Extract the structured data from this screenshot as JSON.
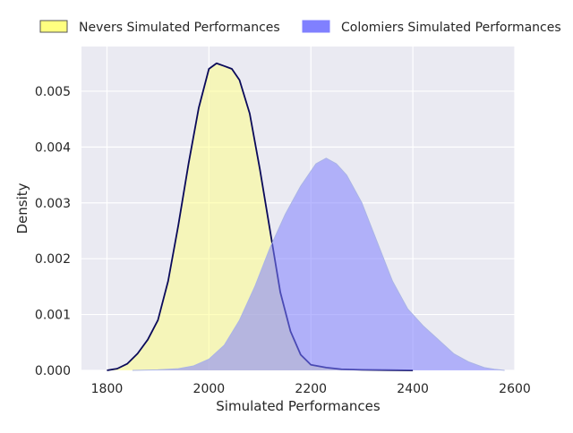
{
  "chart_data": {
    "type": "area",
    "xlabel": "Simulated Performances",
    "ylabel": "Density",
    "xlim": [
      1750,
      2600
    ],
    "ylim": [
      0,
      0.0058
    ],
    "xticks": [
      1800,
      2000,
      2200,
      2400,
      2600
    ],
    "xtick_labels": [
      "1800",
      "2000",
      "2200",
      "2400",
      "2600"
    ],
    "yticks": [
      0,
      0.001,
      0.002,
      0.003,
      0.004,
      0.005
    ],
    "ytick_labels": [
      "0.000",
      "0.001",
      "0.002",
      "0.003",
      "0.004",
      "0.005"
    ],
    "grid": true,
    "legend_position": "top",
    "colors": {
      "background": "#eaeaf2",
      "grid": "#ffffff",
      "nevers_fill": "#ffff80",
      "nevers_line": "#0a0a5a",
      "colomiers_fill": "#8080ff",
      "colomiers_line": "#aab4e6",
      "legend_border": "#555555"
    },
    "series": [
      {
        "name": "Nevers Simulated Performances",
        "x": [
          1800,
          1820,
          1840,
          1860,
          1880,
          1900,
          1920,
          1940,
          1960,
          1980,
          2000,
          2015,
          2030,
          2045,
          2060,
          2080,
          2100,
          2120,
          2140,
          2160,
          2180,
          2200,
          2230,
          2260,
          2300,
          2350,
          2400
        ],
        "y": [
          0.0,
          3e-05,
          0.00012,
          0.0003,
          0.00055,
          0.0009,
          0.0016,
          0.0026,
          0.0037,
          0.0047,
          0.0054,
          0.0055,
          0.00545,
          0.0054,
          0.0052,
          0.0046,
          0.0036,
          0.0025,
          0.0014,
          0.0007,
          0.00028,
          0.0001,
          5e-05,
          2e-05,
          1e-05,
          5e-06,
          0.0
        ]
      },
      {
        "name": "Colomiers Simulated Performances",
        "x": [
          1850,
          1900,
          1940,
          1970,
          2000,
          2030,
          2060,
          2090,
          2120,
          2150,
          2180,
          2210,
          2230,
          2250,
          2270,
          2300,
          2330,
          2360,
          2390,
          2420,
          2450,
          2480,
          2510,
          2540,
          2560,
          2580
        ],
        "y": [
          0.0,
          1e-05,
          3e-05,
          8e-05,
          0.0002,
          0.00045,
          0.0009,
          0.0015,
          0.0022,
          0.0028,
          0.0033,
          0.0037,
          0.0038,
          0.0037,
          0.0035,
          0.003,
          0.0023,
          0.0016,
          0.0011,
          0.0008,
          0.00055,
          0.0003,
          0.00015,
          5e-05,
          2e-05,
          0.0
        ]
      }
    ]
  }
}
